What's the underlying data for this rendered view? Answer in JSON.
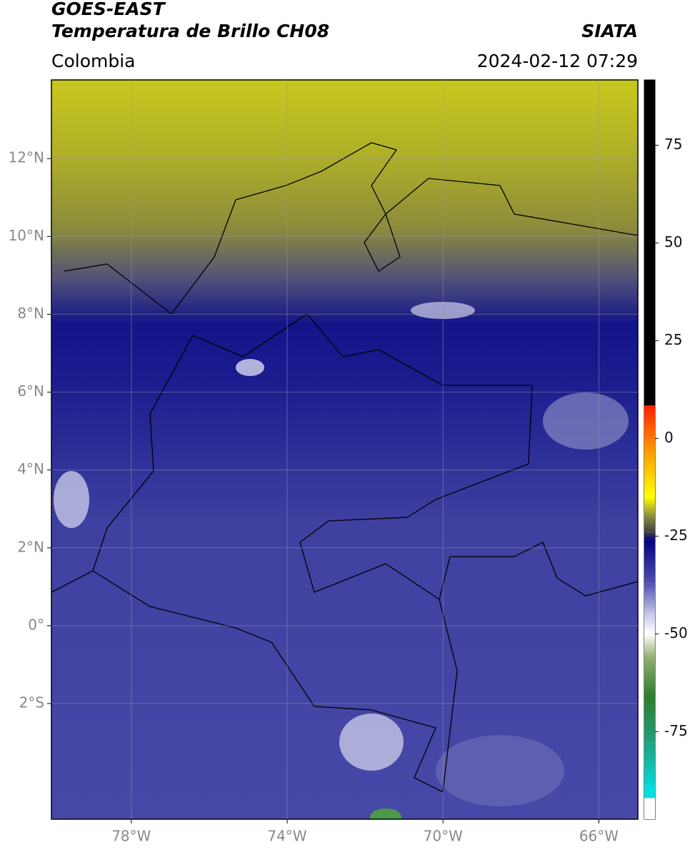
{
  "header": {
    "title": "GOES-EAST",
    "subtitle": "Temperatura de Brillo CH08",
    "source": "SIATA",
    "region": "Colombia",
    "datetime": "2024-02-12 07:29"
  },
  "map": {
    "xlim": [
      -80.05,
      -65
    ],
    "ylim": [
      -4.97,
      14.02
    ],
    "grid": true,
    "xticks": [
      {
        "value": -78,
        "label": "78°W"
      },
      {
        "value": -74,
        "label": "74°W"
      },
      {
        "value": -70,
        "label": "70°W"
      },
      {
        "value": -66,
        "label": "66°W"
      }
    ],
    "yticks": [
      {
        "value": 12,
        "label": "12°N"
      },
      {
        "value": 10,
        "label": "10°N"
      },
      {
        "value": 8,
        "label": "8°N"
      },
      {
        "value": 6,
        "label": "6°N"
      },
      {
        "value": 4,
        "label": "4°N"
      },
      {
        "value": 2,
        "label": "2°N"
      },
      {
        "value": 0,
        "label": "0°"
      },
      {
        "value": -2,
        "label": "2°S"
      }
    ]
  },
  "colorbar": {
    "lim": [
      -97.4,
      91.7
    ],
    "ticks": [
      75,
      50,
      25,
      0,
      -25,
      -50,
      -75
    ],
    "stops": [
      {
        "value": 91.7,
        "color": "#000000"
      },
      {
        "value": 8.4,
        "color": "#000000"
      },
      {
        "value": 8.4,
        "color": "#ff2000"
      },
      {
        "value": -3,
        "color": "#ff9900"
      },
      {
        "value": -15,
        "color": "#ffff00"
      },
      {
        "value": -20,
        "color": "#8a8a40"
      },
      {
        "value": -24,
        "color": "#404040"
      },
      {
        "value": -26,
        "color": "#000080"
      },
      {
        "value": -37,
        "color": "#5050b0"
      },
      {
        "value": -45,
        "color": "#c8c8e8"
      },
      {
        "value": -50,
        "color": "#ffffff"
      },
      {
        "value": -56,
        "color": "#90b070"
      },
      {
        "value": -66,
        "color": "#2e7d2e"
      },
      {
        "value": -78,
        "color": "#20a080"
      },
      {
        "value": -90,
        "color": "#00e0e0"
      },
      {
        "value": -92,
        "color": "#00e0e0"
      },
      {
        "value": -92,
        "color": "#ffffff"
      },
      {
        "value": -97.4,
        "color": "#ffffff"
      }
    ]
  }
}
